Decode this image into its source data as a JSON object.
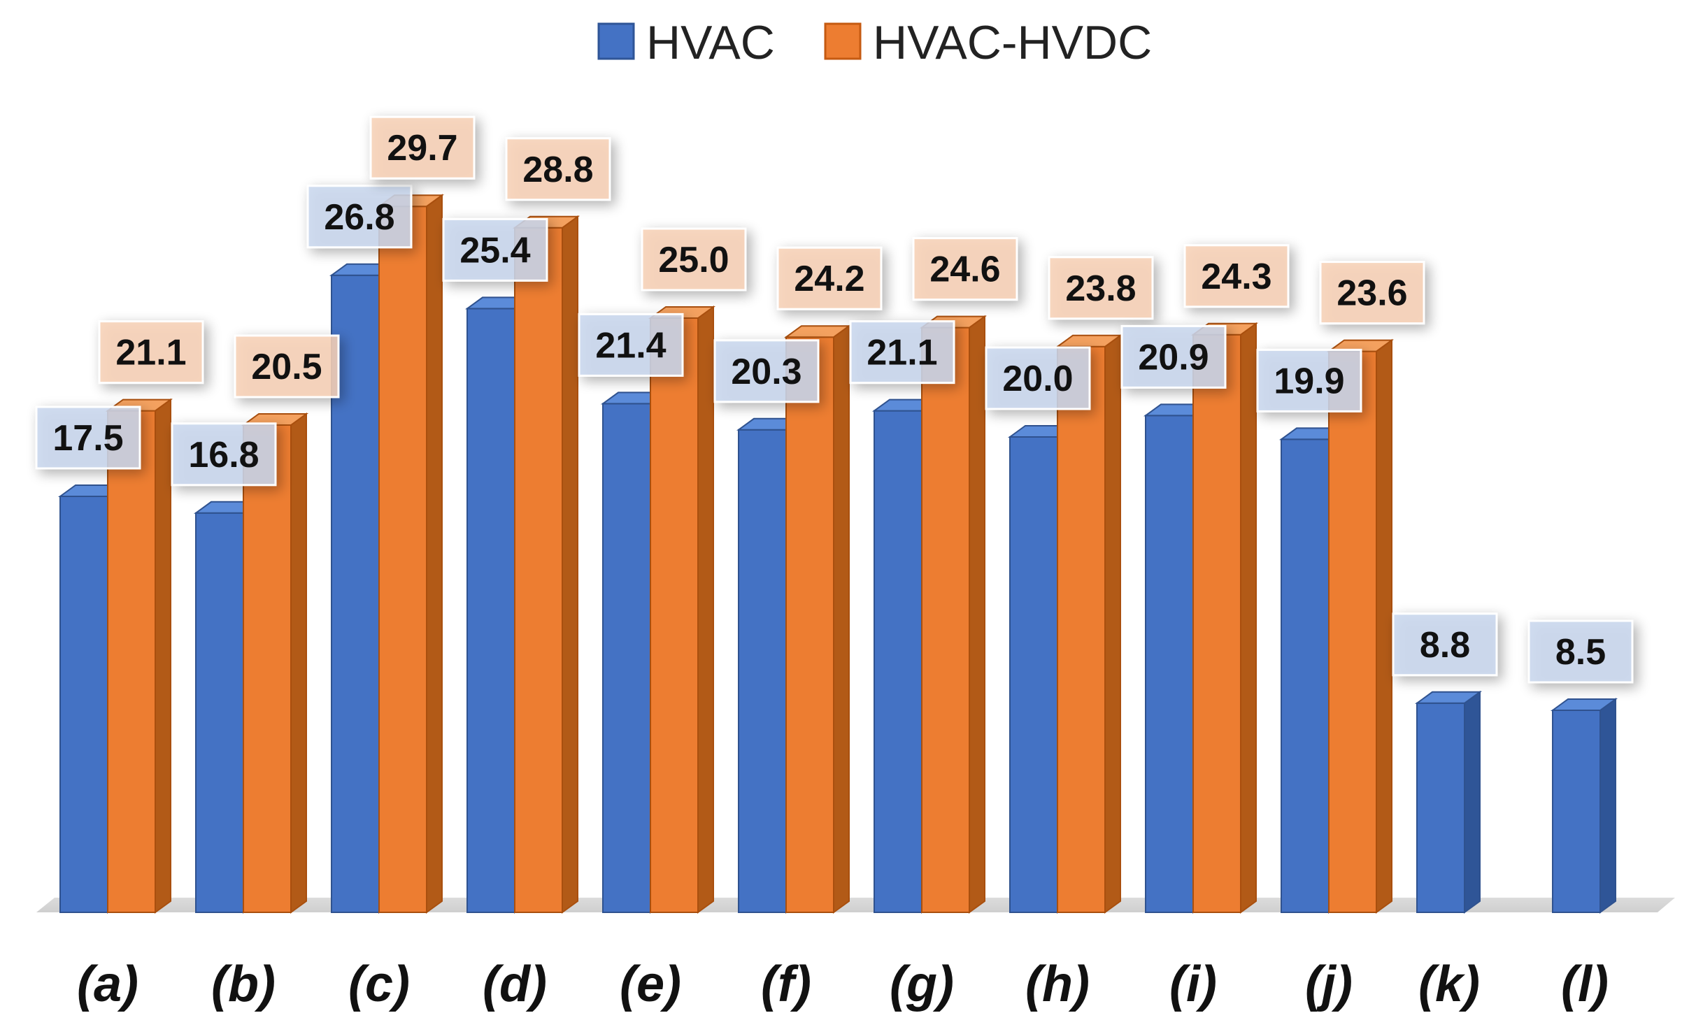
{
  "chart_data": {
    "type": "bar",
    "title": "",
    "xlabel": "",
    "ylabel": "",
    "ylim": [
      0,
      31
    ],
    "grid": false,
    "legend_position": "top-center",
    "categories": [
      "(a)",
      "(b)",
      "(c)",
      "(d)",
      "(e)",
      "(f)",
      "(g)",
      "(h)",
      "(i)",
      "(j)",
      "(k)",
      "(l)"
    ],
    "series": [
      {
        "name": "HVAC",
        "color": "#4472C4",
        "values": [
          17.5,
          16.8,
          26.8,
          25.4,
          21.4,
          20.3,
          21.1,
          20.0,
          20.9,
          19.9,
          8.8,
          8.5
        ],
        "labels": [
          "17.5",
          "16.8",
          "26.8",
          "25.4",
          "21.4",
          "20.3",
          "21.1",
          "20.0",
          "20.9",
          "19.9",
          "8.8",
          "8.5"
        ]
      },
      {
        "name": "HVAC-HVDC",
        "color": "#ED7D31",
        "values": [
          21.1,
          20.5,
          29.7,
          28.8,
          25.0,
          24.2,
          24.6,
          23.8,
          24.3,
          23.6,
          null,
          null
        ],
        "labels": [
          "21.1",
          "20.5",
          "29.7",
          "28.8",
          "25.0",
          "24.2",
          "24.6",
          "23.8",
          "24.3",
          "23.6",
          null,
          null
        ]
      }
    ]
  }
}
